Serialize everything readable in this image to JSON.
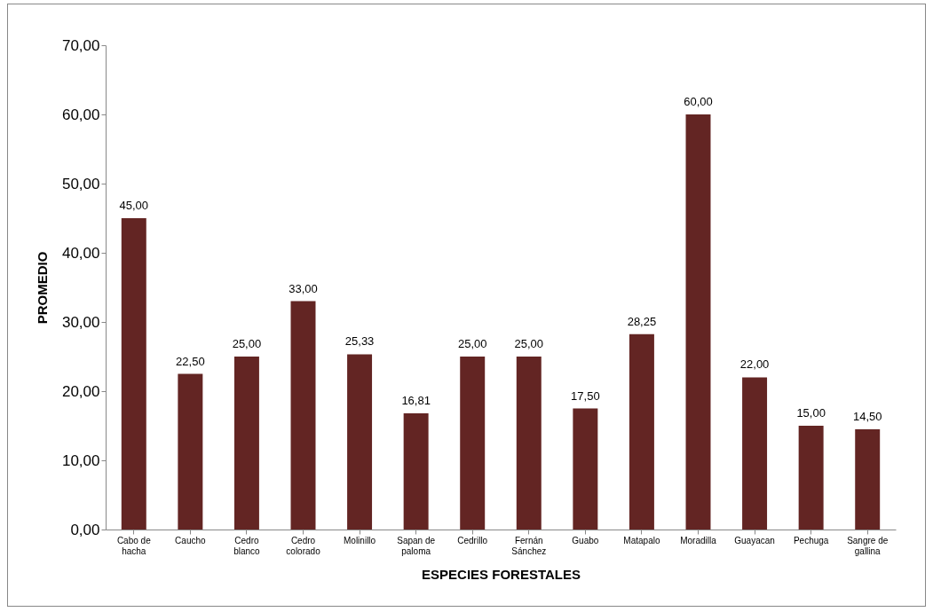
{
  "chart_data": {
    "type": "bar",
    "xlabel": "ESPECIES FORESTALES",
    "ylabel": "PROMEDIO",
    "categories": [
      "Cabo de hacha",
      "Caucho",
      "Cedro blanco",
      "Cedro colorado",
      "Molinillo",
      "Sapan de paloma",
      "Cedrillo",
      "Fernán Sánchez",
      "Guabo",
      "Matapalo",
      "Moradilla",
      "Guayacan",
      "Pechuga",
      "Sangre de gallina"
    ],
    "values": [
      45,
      22.5,
      25,
      33,
      25.33,
      16.81,
      25,
      25,
      17.5,
      28.25,
      60,
      22,
      15,
      14.5
    ],
    "value_labels": [
      "45,00",
      "22,50",
      "25,00",
      "33,00",
      "25,33",
      "16,81",
      "25,00",
      "25,00",
      "17,50",
      "28,25",
      "60,00",
      "22,00",
      "15,00",
      "14,50"
    ],
    "color": "#632523",
    "ylim": [
      0,
      70
    ],
    "yticks": [
      {
        "value": 0,
        "label": "0,00"
      },
      {
        "value": 10,
        "label": "10,00"
      },
      {
        "value": 20,
        "label": "20,00"
      },
      {
        "value": 30,
        "label": "30,00"
      },
      {
        "value": 40,
        "label": "40,00"
      },
      {
        "value": 50,
        "label": "50,00"
      },
      {
        "value": 60,
        "label": "60,00"
      },
      {
        "value": 70,
        "label": "70,00"
      }
    ],
    "grid": false
  }
}
